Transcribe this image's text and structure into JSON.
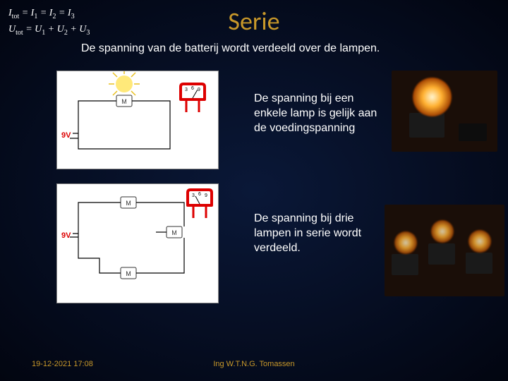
{
  "formulas": {
    "line1_html": "I<sub>tot</sub> = I<sub>1</sub> = I<sub>2</sub> = I<sub>3</sub>",
    "line2_html": "U<sub>tot</sub> = U<sub>1</sub> + U<sub>2</sub> + U<sub>3</sub>"
  },
  "title": "Serie",
  "subtitle": "De spanning van de batterij wordt verdeeld over de lampen.",
  "caption1": "De spanning bij een enkele lamp is gelijk aan de voedingspanning",
  "caption2": "De spanning bij drie lampen in serie wordt verdeeld.",
  "battery_label": "9V",
  "meter_label": "M",
  "voltmeter": {
    "ticks": [
      "3",
      "6",
      "9"
    ]
  },
  "footer": {
    "date": "19-12-2021 17:08",
    "author": "Ing W.T.N.G. Tomassen"
  },
  "colors": {
    "title": "#c8982a",
    "text": "#ffffff",
    "battery": "#d00",
    "meter_red": "#d00",
    "bulb_glow": "#ffe97a"
  }
}
